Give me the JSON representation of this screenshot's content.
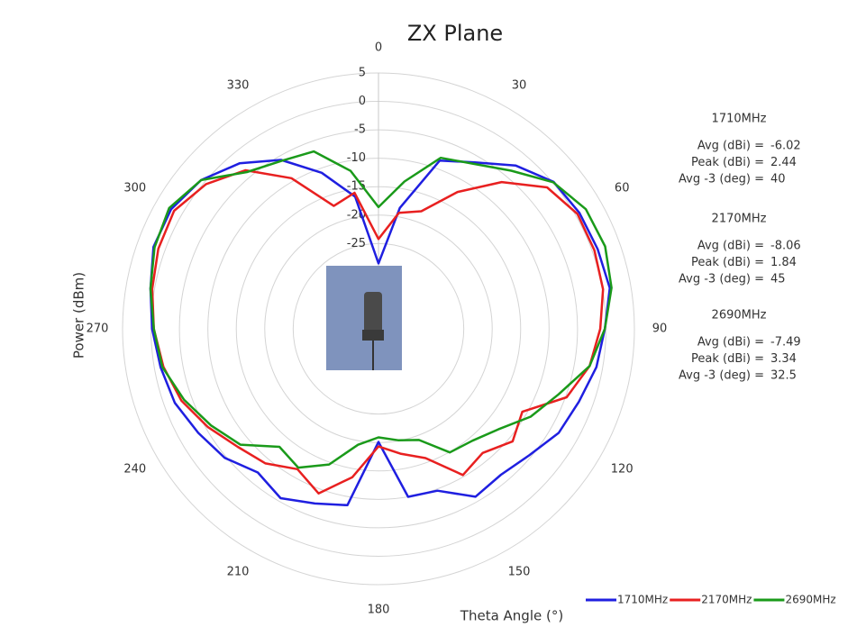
{
  "chart_data": {
    "type": "polar",
    "title": "ZX Plane",
    "xlabel": "Theta  Angle (°)",
    "ylabel": "Power (dBm)",
    "theta": [
      0,
      10,
      20,
      30,
      40,
      50,
      60,
      70,
      80,
      90,
      100,
      110,
      120,
      130,
      140,
      150,
      160,
      170,
      180,
      190,
      200,
      210,
      220,
      230,
      240,
      250,
      260,
      270,
      280,
      290,
      300,
      310,
      320,
      330,
      340,
      350
    ],
    "thetaticks": [
      0,
      30,
      60,
      90,
      120,
      150,
      180,
      210,
      240,
      270,
      300,
      330
    ],
    "rlim": [
      -40,
      5
    ],
    "rticks": [
      5,
      0,
      -5,
      -10,
      -15,
      -20,
      -25
    ],
    "series": [
      {
        "name": "1710MHz",
        "color": "#1f1fe0",
        "values": [
          -28.5,
          -18.4,
          -8.5,
          -6.2,
          -2.5,
          0.2,
          0.8,
          1.0,
          1.3,
          -0.2,
          -1.1,
          -2.5,
          -3.4,
          -5.4,
          -6.5,
          -5.9,
          -9.7,
          -10,
          -20.1,
          -8.5,
          -7.3,
          -5.6,
          -7,
          -4.7,
          -3.4,
          -1.9,
          -1.1,
          -0.2,
          0.7,
          2.1,
          2.1,
          0.7,
          -2,
          -5.7,
          -10.8,
          -16.4
        ]
      },
      {
        "name": "2170MHz",
        "color": "#e82020",
        "values": [
          -24.2,
          -19.3,
          -18,
          -12.2,
          -6.3,
          -1.3,
          0.4,
          0.4,
          0.1,
          -1,
          -2.3,
          -4.8,
          -10.8,
          -9.2,
          -11.5,
          -10.3,
          -15.8,
          -17.7,
          -19.3,
          -13.5,
          -9.2,
          -11.5,
          -9.1,
          -7.7,
          -5.4,
          -3.1,
          -1.6,
          -0.5,
          0.4,
          1.2,
          1.5,
          -0.4,
          -3.6,
          -9.4,
          -17,
          -15.7
        ]
      },
      {
        "name": "2690MHz",
        "color": "#1a9a1a",
        "values": [
          -18.6,
          -13.7,
          -8,
          -6.5,
          -3.7,
          0.1,
          2.1,
          2.4,
          1.6,
          -0.2,
          -2.3,
          -6.3,
          -9.1,
          -12.5,
          -14.3,
          -14.9,
          -19.2,
          -20.1,
          -20.9,
          -19.3,
          -14.6,
          -11.8,
          -12.9,
          -8.3,
          -6,
          -3.6,
          -1.4,
          -0.5,
          0.7,
          1.9,
          2.5,
          0.7,
          -4,
          -5.9,
          -6.8,
          -11.8
        ]
      }
    ],
    "annotations": [
      {
        "title": "1710MHz",
        "rows": [
          {
            "label": "Avg (dBi) =",
            "value": "-6.02"
          },
          {
            "label": "Peak (dBi) =",
            "value": "2.44"
          },
          {
            "label": "Avg -3 (deg) =",
            "value": "40"
          }
        ]
      },
      {
        "title": "2170MHz",
        "rows": [
          {
            "label": "Avg (dBi) =",
            "value": "-8.06"
          },
          {
            "label": "Peak (dBi) =",
            "value": "1.84"
          },
          {
            "label": "Avg -3 (deg) =",
            "value": "45"
          }
        ]
      },
      {
        "title": "2690MHz",
        "rows": [
          {
            "label": "Avg (dBi) =",
            "value": "-7.49"
          },
          {
            "label": "Peak (dBi) =",
            "value": "3.34"
          },
          {
            "label": "Avg -3 (deg) =",
            "value": "32.5"
          }
        ]
      }
    ]
  }
}
